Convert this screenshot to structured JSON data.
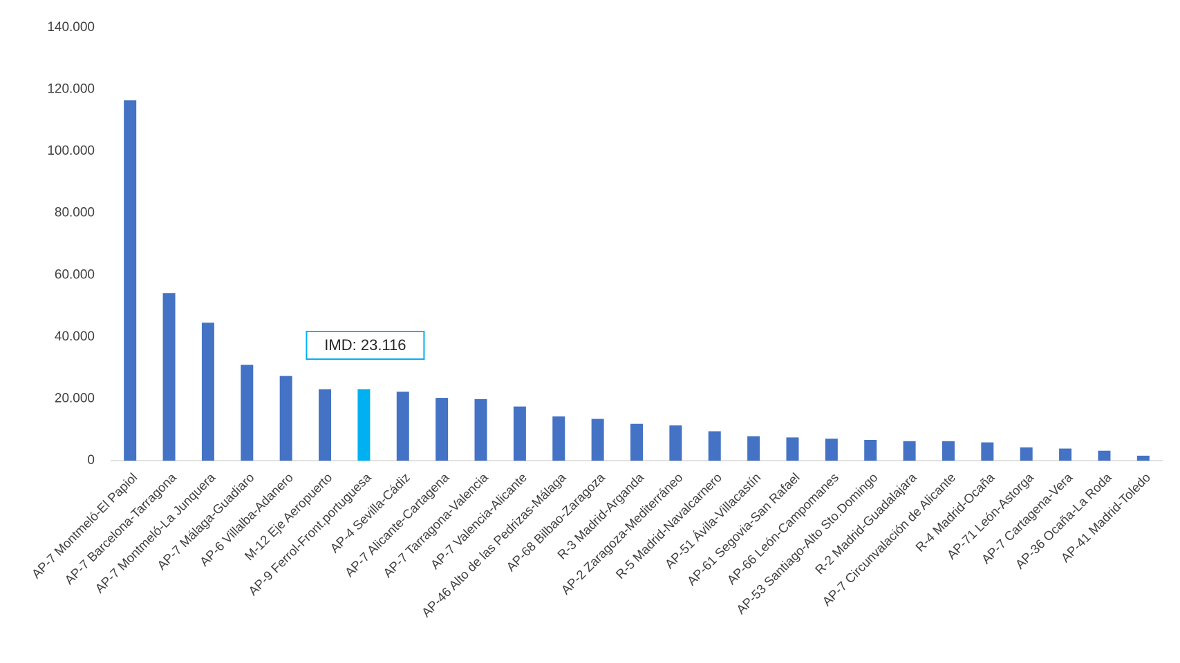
{
  "chart_data": {
    "type": "bar",
    "title": "",
    "xlabel": "",
    "ylabel": "",
    "ylim": [
      0,
      140000
    ],
    "yticks": [
      0,
      20000,
      40000,
      60000,
      80000,
      100000,
      120000,
      140000
    ],
    "ytick_labels": [
      "0",
      "20.000",
      "40.000",
      "60.000",
      "80.000",
      "100.000",
      "120.000",
      "140.000"
    ],
    "grid": false,
    "legend": "none",
    "bar_color": "#4472C4",
    "highlight_color": "#00B0F0",
    "highlight_index": 6,
    "categories": [
      "AP-7 Montmeló-El Papiol",
      "AP-7 Barcelona-Tarragona",
      "AP-7 Montmeló-La Junquera",
      "AP-7 Málaga-Guadiaro",
      "AP-6 Villalba-Adanero",
      "M-12 Eje Aeropuerto",
      "AP-9 Ferrol-Front.portuguesa",
      "AP-4 Sevilla-Cádiz",
      "AP-7 Alicante-Cartagena",
      "AP-7 Tarragona-Valencia",
      "AP-7 Valencia-Alicante",
      "AP-46 Alto de las Pedrizas-Málaga",
      "AP-68 Bilbao-Zaragoza",
      "R-3 Madrid-Arganda",
      "AP-2 Zaragoza-Mediterráneo",
      "R-5 Madrid-Navalcarnero",
      "AP-51 Ávila-Villacastín",
      "AP-61 Segovia-San Rafael",
      "AP-66 León-Campomanes",
      "AP-53 Santiago-Alto Sto.Domingo",
      "R-2 Madrid-Guadalajara",
      "AP-7 Circunvalación de Alicante",
      "R-4 Madrid-Ocaña",
      "AP-71 León-Astorga",
      "AP-7 Cartagena-Vera",
      "AP-36 Ocaña-La Roda",
      "AP-41 Madrid-Toledo"
    ],
    "values": [
      116500,
      54200,
      44600,
      31000,
      27400,
      23100,
      23116,
      22300,
      20300,
      19900,
      17500,
      14300,
      13500,
      11900,
      11400,
      9500,
      7900,
      7500,
      7100,
      6700,
      6300,
      6300,
      5900,
      4300,
      3900,
      3200,
      1600
    ],
    "annotations": [
      {
        "text": "IMD: 23.116",
        "category_index": 6
      }
    ]
  }
}
